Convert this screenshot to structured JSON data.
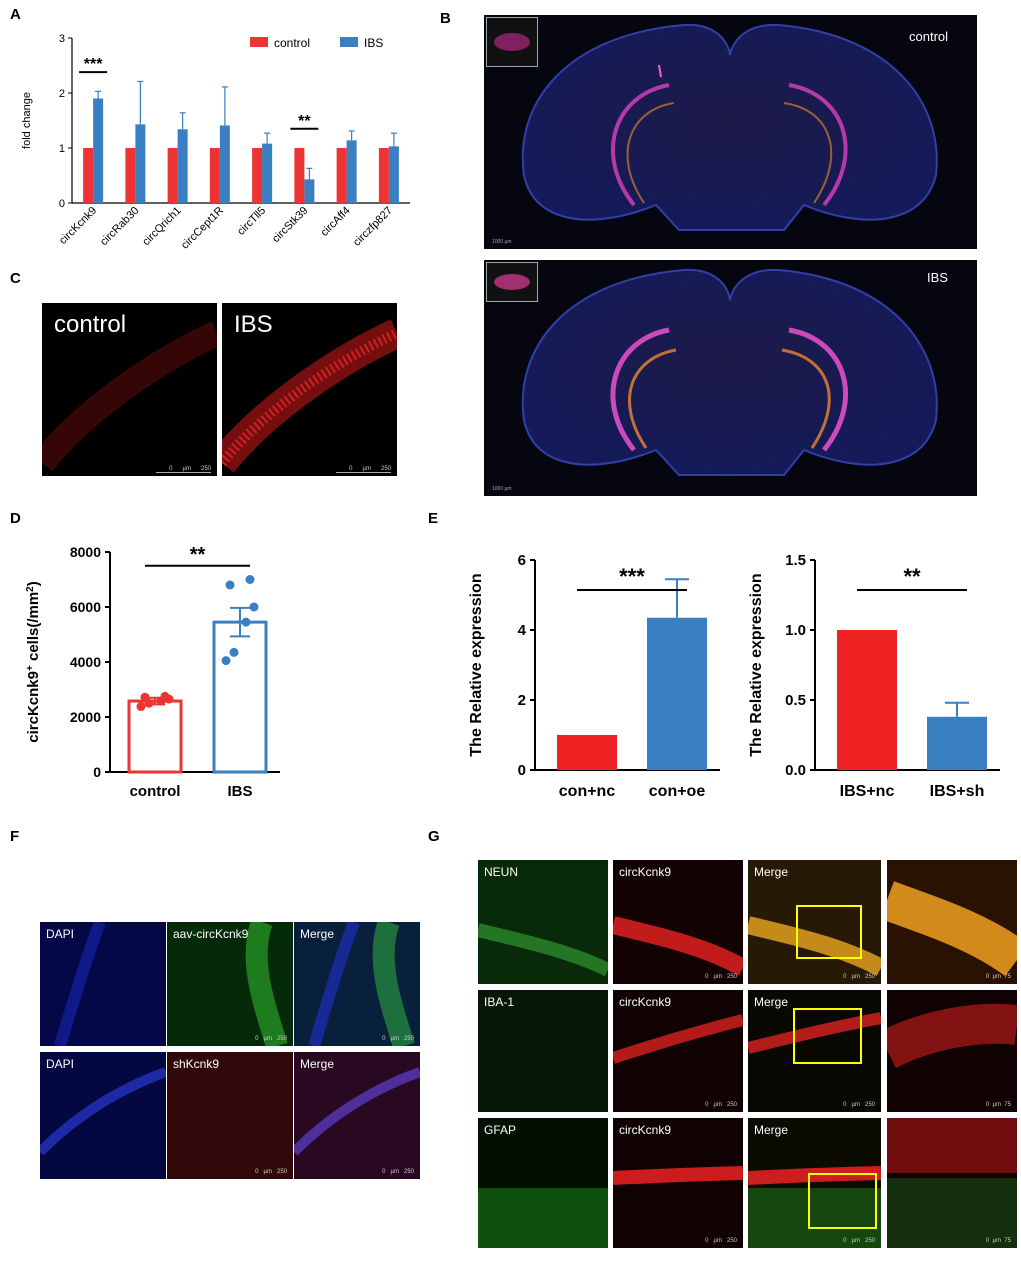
{
  "colors": {
    "red": "#ee3333",
    "blue": "#3a7fc1",
    "black": "#000000"
  },
  "panels": {
    "A": {
      "letter": "A"
    },
    "B": {
      "letter": "B",
      "top_label": "control",
      "bottom_label": "IBS",
      "scale": "1000 µm"
    },
    "C": {
      "letter": "C",
      "left_label": "control",
      "right_label": "IBS",
      "scale_ticks": [
        "0",
        "µm",
        "250"
      ]
    },
    "D": {
      "letter": "D"
    },
    "E": {
      "letter": "E"
    },
    "F": {
      "letter": "F",
      "tiles": [
        "DAPI",
        "aav-circKcnk9",
        "Merge",
        "DAPI",
        "shKcnk9",
        "Merge"
      ],
      "scale_ticks": [
        "0",
        "µm",
        "250"
      ]
    },
    "G": {
      "letter": "G",
      "rows": [
        {
          "labels": [
            "NEUN",
            "circKcnk9",
            "Merge"
          ]
        },
        {
          "labels": [
            "IBA-1",
            "circKcnk9",
            "Merge"
          ]
        },
        {
          "labels": [
            "GFAP",
            "circKcnk9",
            "Merge"
          ]
        }
      ],
      "scale_ticks": [
        "0",
        "µm",
        "250"
      ],
      "zoom_scale": [
        "0",
        "µm",
        "75"
      ]
    }
  },
  "chart_data": [
    {
      "id": "A",
      "type": "bar",
      "ylabel": "fold change",
      "ylim": [
        0,
        3
      ],
      "yticks": [
        "0",
        "1",
        "2",
        "3"
      ],
      "categories": [
        "circKcnk9",
        "circRab30",
        "circQrich1",
        "circCept1R",
        "circTll5",
        "circStk39",
        "circAff4",
        "circzfp827"
      ],
      "legend": "top-right",
      "series": [
        {
          "name": "control",
          "color": "#ee3333",
          "values": [
            1,
            1,
            1,
            1,
            1,
            1,
            1,
            1
          ],
          "errors": [
            0,
            0,
            0,
            0,
            0,
            0,
            0,
            0
          ]
        },
        {
          "name": "IBS",
          "color": "#3a7fc1",
          "values": [
            1.9,
            1.43,
            1.34,
            1.41,
            1.08,
            0.43,
            1.14,
            1.03
          ],
          "errors": [
            0.13,
            0.78,
            0.3,
            0.7,
            0.19,
            0.2,
            0.17,
            0.24
          ]
        }
      ],
      "significance": [
        {
          "category": "circKcnk9",
          "text": "***"
        },
        {
          "category": "circStk39",
          "text": "**"
        }
      ]
    },
    {
      "id": "D",
      "type": "bar",
      "ylabel": "circKcnk9⁺ cells(/mm²)",
      "ylabel_main": "circKcnk9",
      "ylabel_sup1": "+",
      "ylabel_mid": " cells(/mm",
      "ylabel_sup2": "2",
      "ylabel_end": ")",
      "ylim": [
        0,
        8000
      ],
      "yticks": [
        "0",
        "2000",
        "4000",
        "6000",
        "8000"
      ],
      "categories": [
        "control",
        "IBS"
      ],
      "values": [
        2580,
        5450
      ],
      "errors": [
        120,
        520
      ],
      "colors": [
        "#ee3333",
        "#3a7fc1"
      ],
      "points": [
        [
          2380,
          2500,
          2580,
          2650,
          2720,
          2750
        ],
        [
          4050,
          4350,
          5450,
          6000,
          6800,
          7000
        ]
      ],
      "significance": "**"
    },
    {
      "id": "E1",
      "type": "bar",
      "ylabel": "The Relative expression",
      "ylim": [
        0,
        6
      ],
      "yticks": [
        "0",
        "2",
        "4",
        "6"
      ],
      "categories": [
        "con+nc",
        "con+oe"
      ],
      "values": [
        1.0,
        4.35
      ],
      "errors": [
        0,
        1.1
      ],
      "colors": [
        "#ee2222",
        "#3a7fc1"
      ],
      "significance": "***"
    },
    {
      "id": "E2",
      "type": "bar",
      "ylabel": "The Relative expression",
      "ylim": [
        0,
        1.5
      ],
      "yticks": [
        "0.0",
        "0.5",
        "1.0",
        "1.5"
      ],
      "categories": [
        "IBS+nc",
        "IBS+sh"
      ],
      "values": [
        1.0,
        0.38
      ],
      "errors": [
        0,
        0.1
      ],
      "colors": [
        "#ee2222",
        "#3a7fc1"
      ],
      "significance": "**"
    }
  ]
}
